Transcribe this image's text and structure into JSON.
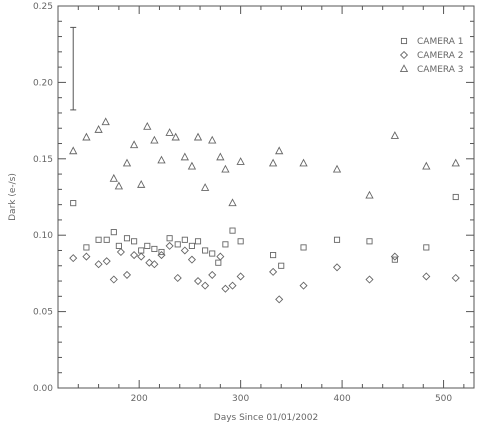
{
  "chart_data": {
    "type": "scatter",
    "title": "",
    "xlabel": "Days Since 01/01/2002",
    "ylabel": "Dark (e-/s)",
    "xlim": [
      120,
      530
    ],
    "ylim": [
      0.0,
      0.25
    ],
    "x_ticks": [
      200,
      300,
      400,
      500
    ],
    "x_tick_labels": [
      "200",
      "300",
      "400",
      "500"
    ],
    "y_ticks": [
      0.0,
      0.05,
      0.1,
      0.15,
      0.2,
      0.25
    ],
    "y_tick_labels": [
      "0.00",
      "0.05",
      "0.10",
      "0.15",
      "0.20",
      "0.25"
    ],
    "grid": false,
    "legend_position": "top-right",
    "error_bar": {
      "x": 135,
      "y_low": 0.182,
      "y_high": 0.236
    },
    "series": [
      {
        "name": "CAMERA 1",
        "marker": "square",
        "x": [
          135,
          148,
          160,
          168,
          175,
          180,
          188,
          195,
          202,
          208,
          215,
          222,
          230,
          238,
          245,
          252,
          258,
          265,
          272,
          278,
          285,
          292,
          300,
          332,
          340,
          362,
          395,
          427,
          452,
          483,
          512
        ],
        "y": [
          0.121,
          0.092,
          0.097,
          0.097,
          0.102,
          0.093,
          0.098,
          0.096,
          0.09,
          0.093,
          0.091,
          0.089,
          0.098,
          0.094,
          0.097,
          0.093,
          0.096,
          0.09,
          0.088,
          0.082,
          0.094,
          0.103,
          0.096,
          0.087,
          0.08,
          0.092,
          0.097,
          0.096,
          0.084,
          0.092,
          0.125
        ]
      },
      {
        "name": "CAMERA 2",
        "marker": "diamond",
        "x": [
          135,
          148,
          160,
          168,
          175,
          182,
          188,
          195,
          202,
          210,
          215,
          222,
          230,
          238,
          245,
          252,
          258,
          265,
          272,
          280,
          285,
          292,
          300,
          332,
          338,
          362,
          395,
          427,
          452,
          483,
          512
        ],
        "y": [
          0.085,
          0.086,
          0.081,
          0.083,
          0.071,
          0.089,
          0.074,
          0.087,
          0.086,
          0.082,
          0.081,
          0.087,
          0.093,
          0.072,
          0.09,
          0.084,
          0.07,
          0.067,
          0.074,
          0.086,
          0.065,
          0.067,
          0.073,
          0.076,
          0.058,
          0.067,
          0.079,
          0.071,
          0.086,
          0.073,
          0.072
        ]
      },
      {
        "name": "CAMERA 3",
        "marker": "triangle",
        "x": [
          135,
          148,
          160,
          167,
          175,
          180,
          188,
          195,
          202,
          208,
          215,
          222,
          230,
          236,
          245,
          252,
          258,
          265,
          272,
          280,
          285,
          292,
          300,
          332,
          338,
          362,
          395,
          427,
          452,
          483,
          512
        ],
        "y": [
          0.155,
          0.164,
          0.169,
          0.174,
          0.137,
          0.132,
          0.147,
          0.159,
          0.133,
          0.171,
          0.162,
          0.149,
          0.167,
          0.164,
          0.151,
          0.145,
          0.164,
          0.131,
          0.162,
          0.151,
          0.143,
          0.121,
          0.148,
          0.147,
          0.155,
          0.147,
          0.143,
          0.126,
          0.165,
          0.145,
          0.147
        ]
      }
    ]
  }
}
